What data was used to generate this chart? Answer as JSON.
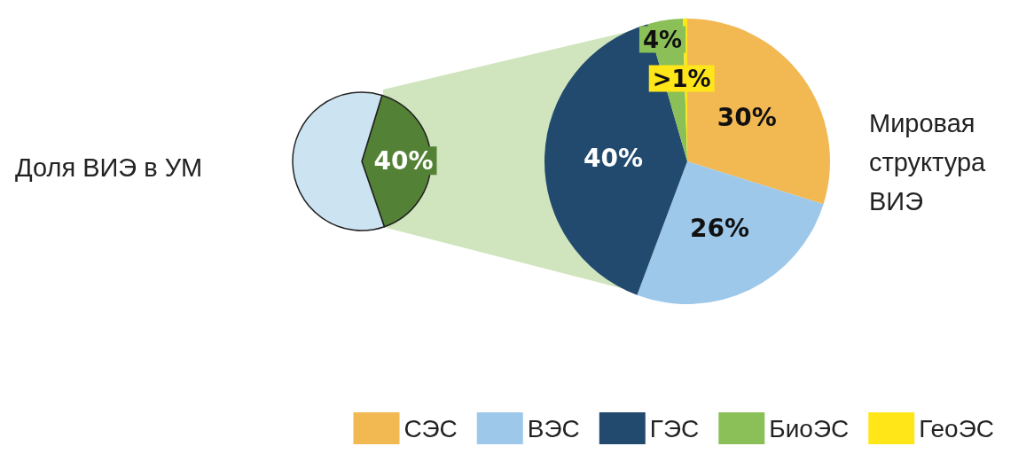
{
  "chart_data": [
    {
      "type": "pie",
      "title": "Доля ВИЭ в УМ",
      "categories": [
        null,
        null
      ],
      "values": [
        40,
        60
      ],
      "colors": [
        "#538135",
        "#cce3f1"
      ],
      "value_labels": [
        "40%",
        null
      ]
    },
    {
      "type": "pie",
      "title": "Мировая структура ВИЭ",
      "categories": [
        "СЭС",
        "ВЭС",
        "ГЭС",
        "БиоЭС",
        "ГеоЭС"
      ],
      "values": [
        30,
        26,
        40,
        4,
        0.5
      ],
      "colors": [
        "#f2b852",
        "#9dc8ea",
        "#224a6e",
        "#8bbf57",
        "#ffe619"
      ],
      "value_labels": [
        "30%",
        "26%",
        "40%",
        "4%",
        ">1%"
      ],
      "legend": "bottom right"
    }
  ]
}
